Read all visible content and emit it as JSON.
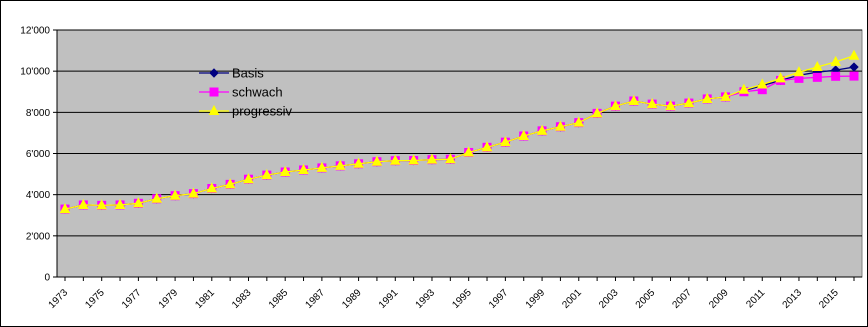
{
  "chart_data": {
    "type": "line",
    "title": "",
    "xlabel": "",
    "ylabel": "",
    "ylim": [
      0,
      12000
    ],
    "yticks": [
      "0",
      "2'000",
      "4'000",
      "6'000",
      "8'000",
      "10'000",
      "12'000"
    ],
    "ytick_values": [
      0,
      2000,
      4000,
      6000,
      8000,
      10000,
      12000
    ],
    "x": [
      1973,
      1974,
      1975,
      1976,
      1977,
      1978,
      1979,
      1980,
      1981,
      1982,
      1983,
      1984,
      1985,
      1986,
      1987,
      1988,
      1989,
      1990,
      1991,
      1992,
      1993,
      1994,
      1995,
      1996,
      1997,
      1998,
      1999,
      2000,
      2001,
      2002,
      2003,
      2004,
      2005,
      2006,
      2007,
      2008,
      2009,
      2010,
      2011,
      2012,
      2013,
      2014,
      2015,
      2016
    ],
    "xtick_labels": [
      "1973",
      "1975",
      "1977",
      "1979",
      "1981",
      "1983",
      "1985",
      "1987",
      "1989",
      "1991",
      "1993",
      "1995",
      "1997",
      "1999",
      "2001",
      "2003",
      "2005",
      "2007",
      "2009",
      "2011",
      "2013",
      "2015"
    ],
    "grid": "horizontal",
    "plot_background": "#c0c0c0",
    "legend_position": "upper-left inside plot",
    "series": [
      {
        "name": "Basis",
        "color": "#000080",
        "marker": "diamond",
        "values": [
          3300,
          3500,
          3480,
          3500,
          3580,
          3800,
          3950,
          4050,
          4300,
          4500,
          4750,
          4950,
          5100,
          5200,
          5300,
          5400,
          5500,
          5600,
          5650,
          5660,
          5700,
          5720,
          6050,
          6300,
          6550,
          6850,
          7100,
          7300,
          7500,
          7950,
          8300,
          8550,
          8400,
          8300,
          8450,
          8650,
          8750,
          9050,
          9300,
          9550,
          9800,
          9950,
          10050,
          10200
        ]
      },
      {
        "name": "schwach",
        "color": "#ff00ff",
        "marker": "square",
        "values": [
          3300,
          3500,
          3480,
          3500,
          3580,
          3800,
          3950,
          4050,
          4300,
          4500,
          4750,
          4950,
          5100,
          5200,
          5300,
          5400,
          5500,
          5600,
          5650,
          5660,
          5700,
          5720,
          6050,
          6300,
          6550,
          6850,
          7100,
          7300,
          7500,
          7950,
          8300,
          8550,
          8400,
          8300,
          8450,
          8650,
          8750,
          9000,
          9100,
          9550,
          9650,
          9700,
          9750,
          9760
        ]
      },
      {
        "name": "progressiv",
        "color": "#ffff00",
        "marker": "triangle",
        "values": [
          3300,
          3500,
          3480,
          3500,
          3580,
          3800,
          3950,
          4050,
          4300,
          4500,
          4750,
          4950,
          5100,
          5200,
          5300,
          5400,
          5500,
          5600,
          5650,
          5660,
          5700,
          5720,
          6050,
          6300,
          6550,
          6850,
          7100,
          7300,
          7500,
          7950,
          8300,
          8550,
          8400,
          8300,
          8450,
          8650,
          8750,
          9100,
          9350,
          9650,
          9950,
          10200,
          10450,
          10750
        ]
      }
    ]
  }
}
